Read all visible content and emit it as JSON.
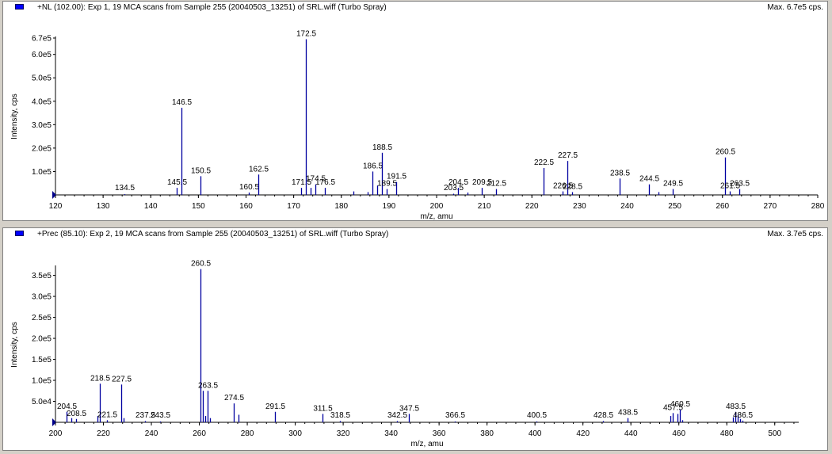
{
  "chart_data": [
    {
      "type": "bar",
      "title": "+NL (102.00): Exp 1, 19 MCA scans from Sample 255 (20040503_13251) of SRL.wiff (Turbo Spray)",
      "max_label": "Max. 6.7e5 cps.",
      "xlabel": "m/z, amu",
      "ylabel": "Intensity, cps",
      "xlim": [
        120,
        280
      ],
      "ylim": [
        0,
        670000
      ],
      "x_ticks": [
        120,
        130,
        140,
        150,
        160,
        170,
        180,
        190,
        200,
        210,
        220,
        230,
        240,
        250,
        260,
        270,
        280
      ],
      "y_ticks": [
        {
          "value": 100000,
          "label": "1.0e5"
        },
        {
          "value": 200000,
          "label": "2.0e5"
        },
        {
          "value": 300000,
          "label": "3.0e5"
        },
        {
          "value": 400000,
          "label": "4.0e5"
        },
        {
          "value": 500000,
          "label": "5.0e5"
        },
        {
          "value": 600000,
          "label": "6.0e5"
        },
        {
          "value": 670000,
          "label": "6.7e5"
        }
      ],
      "peaks": [
        {
          "x": 134.5,
          "y": 3000,
          "label": "134.5"
        },
        {
          "x": 145.5,
          "y": 30000,
          "label": "145.5"
        },
        {
          "x": 146.5,
          "y": 372000,
          "label": "146.5"
        },
        {
          "x": 150.5,
          "y": 80000,
          "label": "150.5"
        },
        {
          "x": 160.5,
          "y": 10000,
          "label": "160.5"
        },
        {
          "x": 162.5,
          "y": 87000,
          "label": "162.5"
        },
        {
          "x": 171.5,
          "y": 30000,
          "label": "171.5"
        },
        {
          "x": 172.5,
          "y": 665000,
          "label": "172.5"
        },
        {
          "x": 173.5,
          "y": 30000,
          "label": ""
        },
        {
          "x": 174.5,
          "y": 45000,
          "label": "174.5"
        },
        {
          "x": 176.5,
          "y": 30000,
          "label": "176.5"
        },
        {
          "x": 182.5,
          "y": 15000,
          "label": ""
        },
        {
          "x": 185.5,
          "y": 12000,
          "label": ""
        },
        {
          "x": 186.5,
          "y": 100000,
          "label": "186.5"
        },
        {
          "x": 187.5,
          "y": 40000,
          "label": ""
        },
        {
          "x": 188.5,
          "y": 180000,
          "label": "188.5"
        },
        {
          "x": 189.5,
          "y": 25000,
          "label": "189.5"
        },
        {
          "x": 191.5,
          "y": 55000,
          "label": "191.5"
        },
        {
          "x": 203.5,
          "y": 5000,
          "label": "203.5"
        },
        {
          "x": 204.5,
          "y": 30000,
          "label": "204.5"
        },
        {
          "x": 206.5,
          "y": 10000,
          "label": ""
        },
        {
          "x": 209.5,
          "y": 30000,
          "label": "209.5"
        },
        {
          "x": 212.5,
          "y": 25000,
          "label": "212.5"
        },
        {
          "x": 222.5,
          "y": 115000,
          "label": "222.5"
        },
        {
          "x": 226.5,
          "y": 15000,
          "label": "226.5"
        },
        {
          "x": 227.5,
          "y": 145000,
          "label": "227.5"
        },
        {
          "x": 228.5,
          "y": 12000,
          "label": "228.5"
        },
        {
          "x": 238.5,
          "y": 70000,
          "label": "238.5"
        },
        {
          "x": 244.5,
          "y": 45000,
          "label": "244.5"
        },
        {
          "x": 246.5,
          "y": 12000,
          "label": ""
        },
        {
          "x": 249.5,
          "y": 25000,
          "label": "249.5"
        },
        {
          "x": 260.5,
          "y": 160000,
          "label": "260.5"
        },
        {
          "x": 261.5,
          "y": 15000,
          "label": "261.5"
        },
        {
          "x": 263.5,
          "y": 25000,
          "label": "263.5"
        }
      ]
    },
    {
      "type": "bar",
      "title": "+Prec (85.10): Exp 2, 19 MCA scans from Sample 255 (20040503_13251) of SRL.wiff (Turbo Spray)",
      "max_label": "Max. 3.7e5 cps.",
      "xlabel": "m/z, amu",
      "ylabel": "Intensity, cps",
      "xlim": [
        200,
        510
      ],
      "ylim": [
        0,
        370000
      ],
      "x_ticks": [
        200,
        220,
        240,
        260,
        280,
        300,
        320,
        340,
        360,
        380,
        400,
        420,
        440,
        460,
        480,
        500
      ],
      "y_ticks": [
        {
          "value": 50000,
          "label": "5.0e4"
        },
        {
          "value": 100000,
          "label": "1.0e5"
        },
        {
          "value": 150000,
          "label": "1.5e5"
        },
        {
          "value": 200000,
          "label": "2.0e5"
        },
        {
          "value": 250000,
          "label": "2.5e5"
        },
        {
          "value": 300000,
          "label": "3.0e5"
        },
        {
          "value": 350000,
          "label": "3.5e5"
        }
      ],
      "peaks": [
        {
          "x": 204.5,
          "y": 25000,
          "label": "204.5"
        },
        {
          "x": 206.5,
          "y": 10000,
          "label": ""
        },
        {
          "x": 208.5,
          "y": 8000,
          "label": "208.5"
        },
        {
          "x": 217.5,
          "y": 15000,
          "label": ""
        },
        {
          "x": 218.5,
          "y": 92000,
          "label": "218.5"
        },
        {
          "x": 221.5,
          "y": 5000,
          "label": "221.5"
        },
        {
          "x": 227.5,
          "y": 90000,
          "label": "227.5"
        },
        {
          "x": 228.5,
          "y": 10000,
          "label": ""
        },
        {
          "x": 237.5,
          "y": 3000,
          "label": "237.5"
        },
        {
          "x": 243.5,
          "y": 2000,
          "label": "243.5"
        },
        {
          "x": 260.5,
          "y": 365000,
          "label": "260.5"
        },
        {
          "x": 261.5,
          "y": 75000,
          "label": ""
        },
        {
          "x": 262.5,
          "y": 15000,
          "label": ""
        },
        {
          "x": 263.5,
          "y": 75000,
          "label": "263.5"
        },
        {
          "x": 264.5,
          "y": 10000,
          "label": ""
        },
        {
          "x": 274.5,
          "y": 45000,
          "label": "274.5"
        },
        {
          "x": 276.5,
          "y": 18000,
          "label": ""
        },
        {
          "x": 291.5,
          "y": 25000,
          "label": "291.5"
        },
        {
          "x": 311.5,
          "y": 20000,
          "label": "311.5"
        },
        {
          "x": 318.5,
          "y": 3000,
          "label": "318.5"
        },
        {
          "x": 342.5,
          "y": 3000,
          "label": "342.5"
        },
        {
          "x": 347.5,
          "y": 20000,
          "label": "347.5"
        },
        {
          "x": 366.5,
          "y": 2000,
          "label": "366.5"
        },
        {
          "x": 400.5,
          "y": 2000,
          "label": "400.5"
        },
        {
          "x": 428.5,
          "y": 3000,
          "label": "428.5"
        },
        {
          "x": 438.5,
          "y": 10000,
          "label": "438.5"
        },
        {
          "x": 456.5,
          "y": 15000,
          "label": ""
        },
        {
          "x": 457.5,
          "y": 22000,
          "label": "457.5"
        },
        {
          "x": 459.5,
          "y": 20000,
          "label": ""
        },
        {
          "x": 460.5,
          "y": 30000,
          "label": "460.5"
        },
        {
          "x": 461.5,
          "y": 5000,
          "label": ""
        },
        {
          "x": 482.5,
          "y": 12000,
          "label": ""
        },
        {
          "x": 483.5,
          "y": 25000,
          "label": "483.5"
        },
        {
          "x": 484.5,
          "y": 18000,
          "label": ""
        },
        {
          "x": 485.5,
          "y": 8000,
          "label": ""
        },
        {
          "x": 486.5,
          "y": 4000,
          "label": "486.5"
        }
      ]
    }
  ],
  "colors": {
    "peak": "#0000a0",
    "axis": "#000000",
    "marker": "#0000ff"
  }
}
